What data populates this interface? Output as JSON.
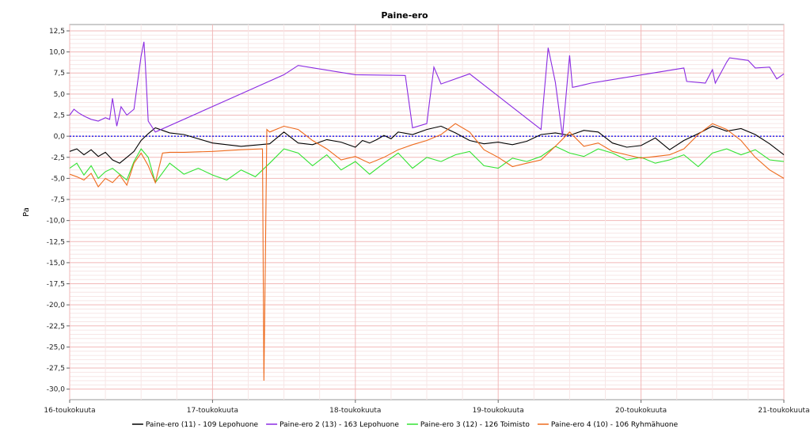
{
  "chart_data": {
    "type": "line",
    "title": "Paine-ero",
    "ylabel": "Pa",
    "xlabel": "",
    "xlim": [
      0,
      5
    ],
    "ylim": [
      -31.25,
      13.25
    ],
    "y_ticks": [
      12.5,
      10.0,
      7.5,
      5.0,
      2.5,
      0.0,
      -2.5,
      -5.0,
      -7.5,
      -10.0,
      -12.5,
      -15.0,
      -17.5,
      -20.0,
      -22.5,
      -25.0,
      -27.5,
      -30.0
    ],
    "y_tick_labels": [
      "12,5",
      "10,0",
      "7,5",
      "5,0",
      "2,5",
      "0,0",
      "-2,5",
      "-5,0",
      "-7,5",
      "-10,0",
      "-12,5",
      "-15,0",
      "-17,5",
      "-20,0",
      "-22,5",
      "-25,0",
      "-27,5",
      "-30,0"
    ],
    "x_ticks": [
      0,
      1,
      2,
      3,
      4,
      5
    ],
    "x_tick_labels": [
      "16-toukokuuta",
      "17-toukokuuta",
      "18-toukokuuta",
      "19-toukokuuta",
      "20-toukokuuta",
      "21-toukokuuta"
    ],
    "grid": true,
    "reference_line": 0.0,
    "legend_position": "bottom",
    "series": [
      {
        "name": "Paine-ero (11) - 109 Lepohuone",
        "color": "#000000",
        "x": [
          0.0,
          0.05,
          0.1,
          0.15,
          0.2,
          0.25,
          0.3,
          0.35,
          0.4,
          0.45,
          0.5,
          0.55,
          0.6,
          0.65,
          0.7,
          0.8,
          1.0,
          1.2,
          1.4,
          1.5,
          1.6,
          1.7,
          1.8,
          1.9,
          2.0,
          2.05,
          2.1,
          2.15,
          2.2,
          2.25,
          2.3,
          2.4,
          2.5,
          2.6,
          2.7,
          2.8,
          2.9,
          3.0,
          3.1,
          3.2,
          3.3,
          3.4,
          3.5,
          3.6,
          3.7,
          3.8,
          3.9,
          4.0,
          4.1,
          4.2,
          4.3,
          4.4,
          4.5,
          4.6,
          4.7,
          4.8,
          4.9,
          5.0
        ],
        "y": [
          -1.8,
          -1.5,
          -2.2,
          -1.6,
          -2.4,
          -1.9,
          -2.8,
          -3.2,
          -2.5,
          -1.8,
          -0.5,
          0.3,
          1.0,
          0.7,
          0.4,
          0.2,
          -0.8,
          -1.2,
          -0.9,
          0.5,
          -0.8,
          -1.0,
          -0.4,
          -0.7,
          -1.3,
          -0.5,
          -0.8,
          -0.4,
          0.1,
          -0.3,
          0.5,
          0.2,
          0.8,
          1.2,
          0.4,
          -0.5,
          -0.9,
          -0.7,
          -1.0,
          -0.6,
          0.2,
          0.4,
          0.1,
          0.7,
          0.5,
          -0.8,
          -1.3,
          -1.1,
          -0.2,
          -1.6,
          -0.5,
          0.3,
          1.2,
          0.6,
          0.9,
          0.2,
          -0.9,
          -2.2
        ]
      },
      {
        "name": "Paine-ero 2 (13) - 163 Lepohuone",
        "color": "#8a2be2",
        "x": [
          0.0,
          0.03,
          0.06,
          0.1,
          0.15,
          0.2,
          0.25,
          0.28,
          0.3,
          0.33,
          0.36,
          0.4,
          0.45,
          0.5,
          0.52,
          0.53,
          0.55,
          0.6,
          1.5,
          1.6,
          2.0,
          2.35,
          2.4,
          2.5,
          2.55,
          2.6,
          2.8,
          3.3,
          3.35,
          3.4,
          3.45,
          3.5,
          3.52,
          3.55,
          3.6,
          3.65,
          4.3,
          4.32,
          4.45,
          4.5,
          4.52,
          4.6,
          4.62,
          4.75,
          4.8,
          4.9,
          4.95,
          5.0
        ],
        "y": [
          2.5,
          3.2,
          2.8,
          2.4,
          2.0,
          1.8,
          2.2,
          2.0,
          4.5,
          1.2,
          3.5,
          2.5,
          3.2,
          9.5,
          11.2,
          8.5,
          1.8,
          0.5,
          7.3,
          8.4,
          7.3,
          7.2,
          1.0,
          1.5,
          8.2,
          6.2,
          7.4,
          0.8,
          10.5,
          6.4,
          0.0,
          9.6,
          5.8,
          5.9,
          6.1,
          6.3,
          8.1,
          6.5,
          6.3,
          7.9,
          6.3,
          8.8,
          9.3,
          9.0,
          8.1,
          8.2,
          6.8,
          7.4
        ]
      },
      {
        "name": "Paine-ero 3 (12) - 126 Toimisto",
        "color": "#33e333",
        "x": [
          0.0,
          0.05,
          0.1,
          0.15,
          0.2,
          0.25,
          0.3,
          0.35,
          0.4,
          0.45,
          0.5,
          0.55,
          0.6,
          0.7,
          0.8,
          0.9,
          1.0,
          1.1,
          1.2,
          1.3,
          1.4,
          1.5,
          1.6,
          1.7,
          1.8,
          1.9,
          2.0,
          2.1,
          2.2,
          2.3,
          2.4,
          2.5,
          2.6,
          2.7,
          2.8,
          2.9,
          3.0,
          3.1,
          3.2,
          3.3,
          3.4,
          3.5,
          3.6,
          3.7,
          3.8,
          3.9,
          4.0,
          4.1,
          4.2,
          4.3,
          4.4,
          4.5,
          4.6,
          4.7,
          4.8,
          4.9,
          5.0
        ],
        "y": [
          -3.8,
          -3.2,
          -4.6,
          -3.5,
          -5.0,
          -4.2,
          -3.8,
          -4.5,
          -5.2,
          -3.0,
          -1.5,
          -2.5,
          -5.5,
          -3.2,
          -4.5,
          -3.8,
          -4.6,
          -5.2,
          -4.0,
          -4.8,
          -3.2,
          -1.5,
          -2.0,
          -3.5,
          -2.2,
          -4.0,
          -3.0,
          -4.5,
          -3.2,
          -2.0,
          -3.8,
          -2.5,
          -3.0,
          -2.2,
          -1.8,
          -3.5,
          -3.8,
          -2.6,
          -3.0,
          -2.4,
          -1.2,
          -2.0,
          -2.4,
          -1.5,
          -2.0,
          -2.8,
          -2.5,
          -3.2,
          -2.8,
          -2.2,
          -3.6,
          -2.0,
          -1.5,
          -2.2,
          -1.6,
          -2.8,
          -3.0
        ]
      },
      {
        "name": "Paine-ero 4 (10) - 106 Ryhmähuone",
        "color": "#ee6a1c",
        "x": [
          0.0,
          0.05,
          0.1,
          0.15,
          0.2,
          0.25,
          0.3,
          0.35,
          0.4,
          0.45,
          0.5,
          0.55,
          0.6,
          0.65,
          0.7,
          0.8,
          1.0,
          1.2,
          1.35,
          1.36,
          1.37,
          1.38,
          1.4,
          1.5,
          1.6,
          1.7,
          1.8,
          1.9,
          2.0,
          2.1,
          2.2,
          2.3,
          2.4,
          2.5,
          2.6,
          2.7,
          2.8,
          2.9,
          3.0,
          3.1,
          3.2,
          3.3,
          3.4,
          3.5,
          3.6,
          3.7,
          3.8,
          3.9,
          4.0,
          4.1,
          4.2,
          4.3,
          4.4,
          4.5,
          4.6,
          4.7,
          4.8,
          4.9,
          5.0
        ],
        "y": [
          -4.5,
          -4.8,
          -5.2,
          -4.4,
          -6.0,
          -5.0,
          -5.5,
          -4.6,
          -5.8,
          -3.2,
          -2.0,
          -3.5,
          -5.5,
          -2.0,
          -1.9,
          -1.9,
          -1.8,
          -1.6,
          -1.5,
          -29.0,
          -15.0,
          0.8,
          0.5,
          1.2,
          0.8,
          -0.5,
          -1.5,
          -2.8,
          -2.4,
          -3.2,
          -2.5,
          -1.6,
          -1.0,
          -0.5,
          0.2,
          1.5,
          0.5,
          -1.6,
          -2.5,
          -3.6,
          -3.2,
          -2.8,
          -1.2,
          0.5,
          -1.2,
          -0.8,
          -1.8,
          -2.2,
          -2.6,
          -2.4,
          -2.2,
          -1.5,
          0.2,
          1.5,
          0.8,
          -0.5,
          -2.5,
          -4.0,
          -5.0
        ]
      }
    ]
  }
}
